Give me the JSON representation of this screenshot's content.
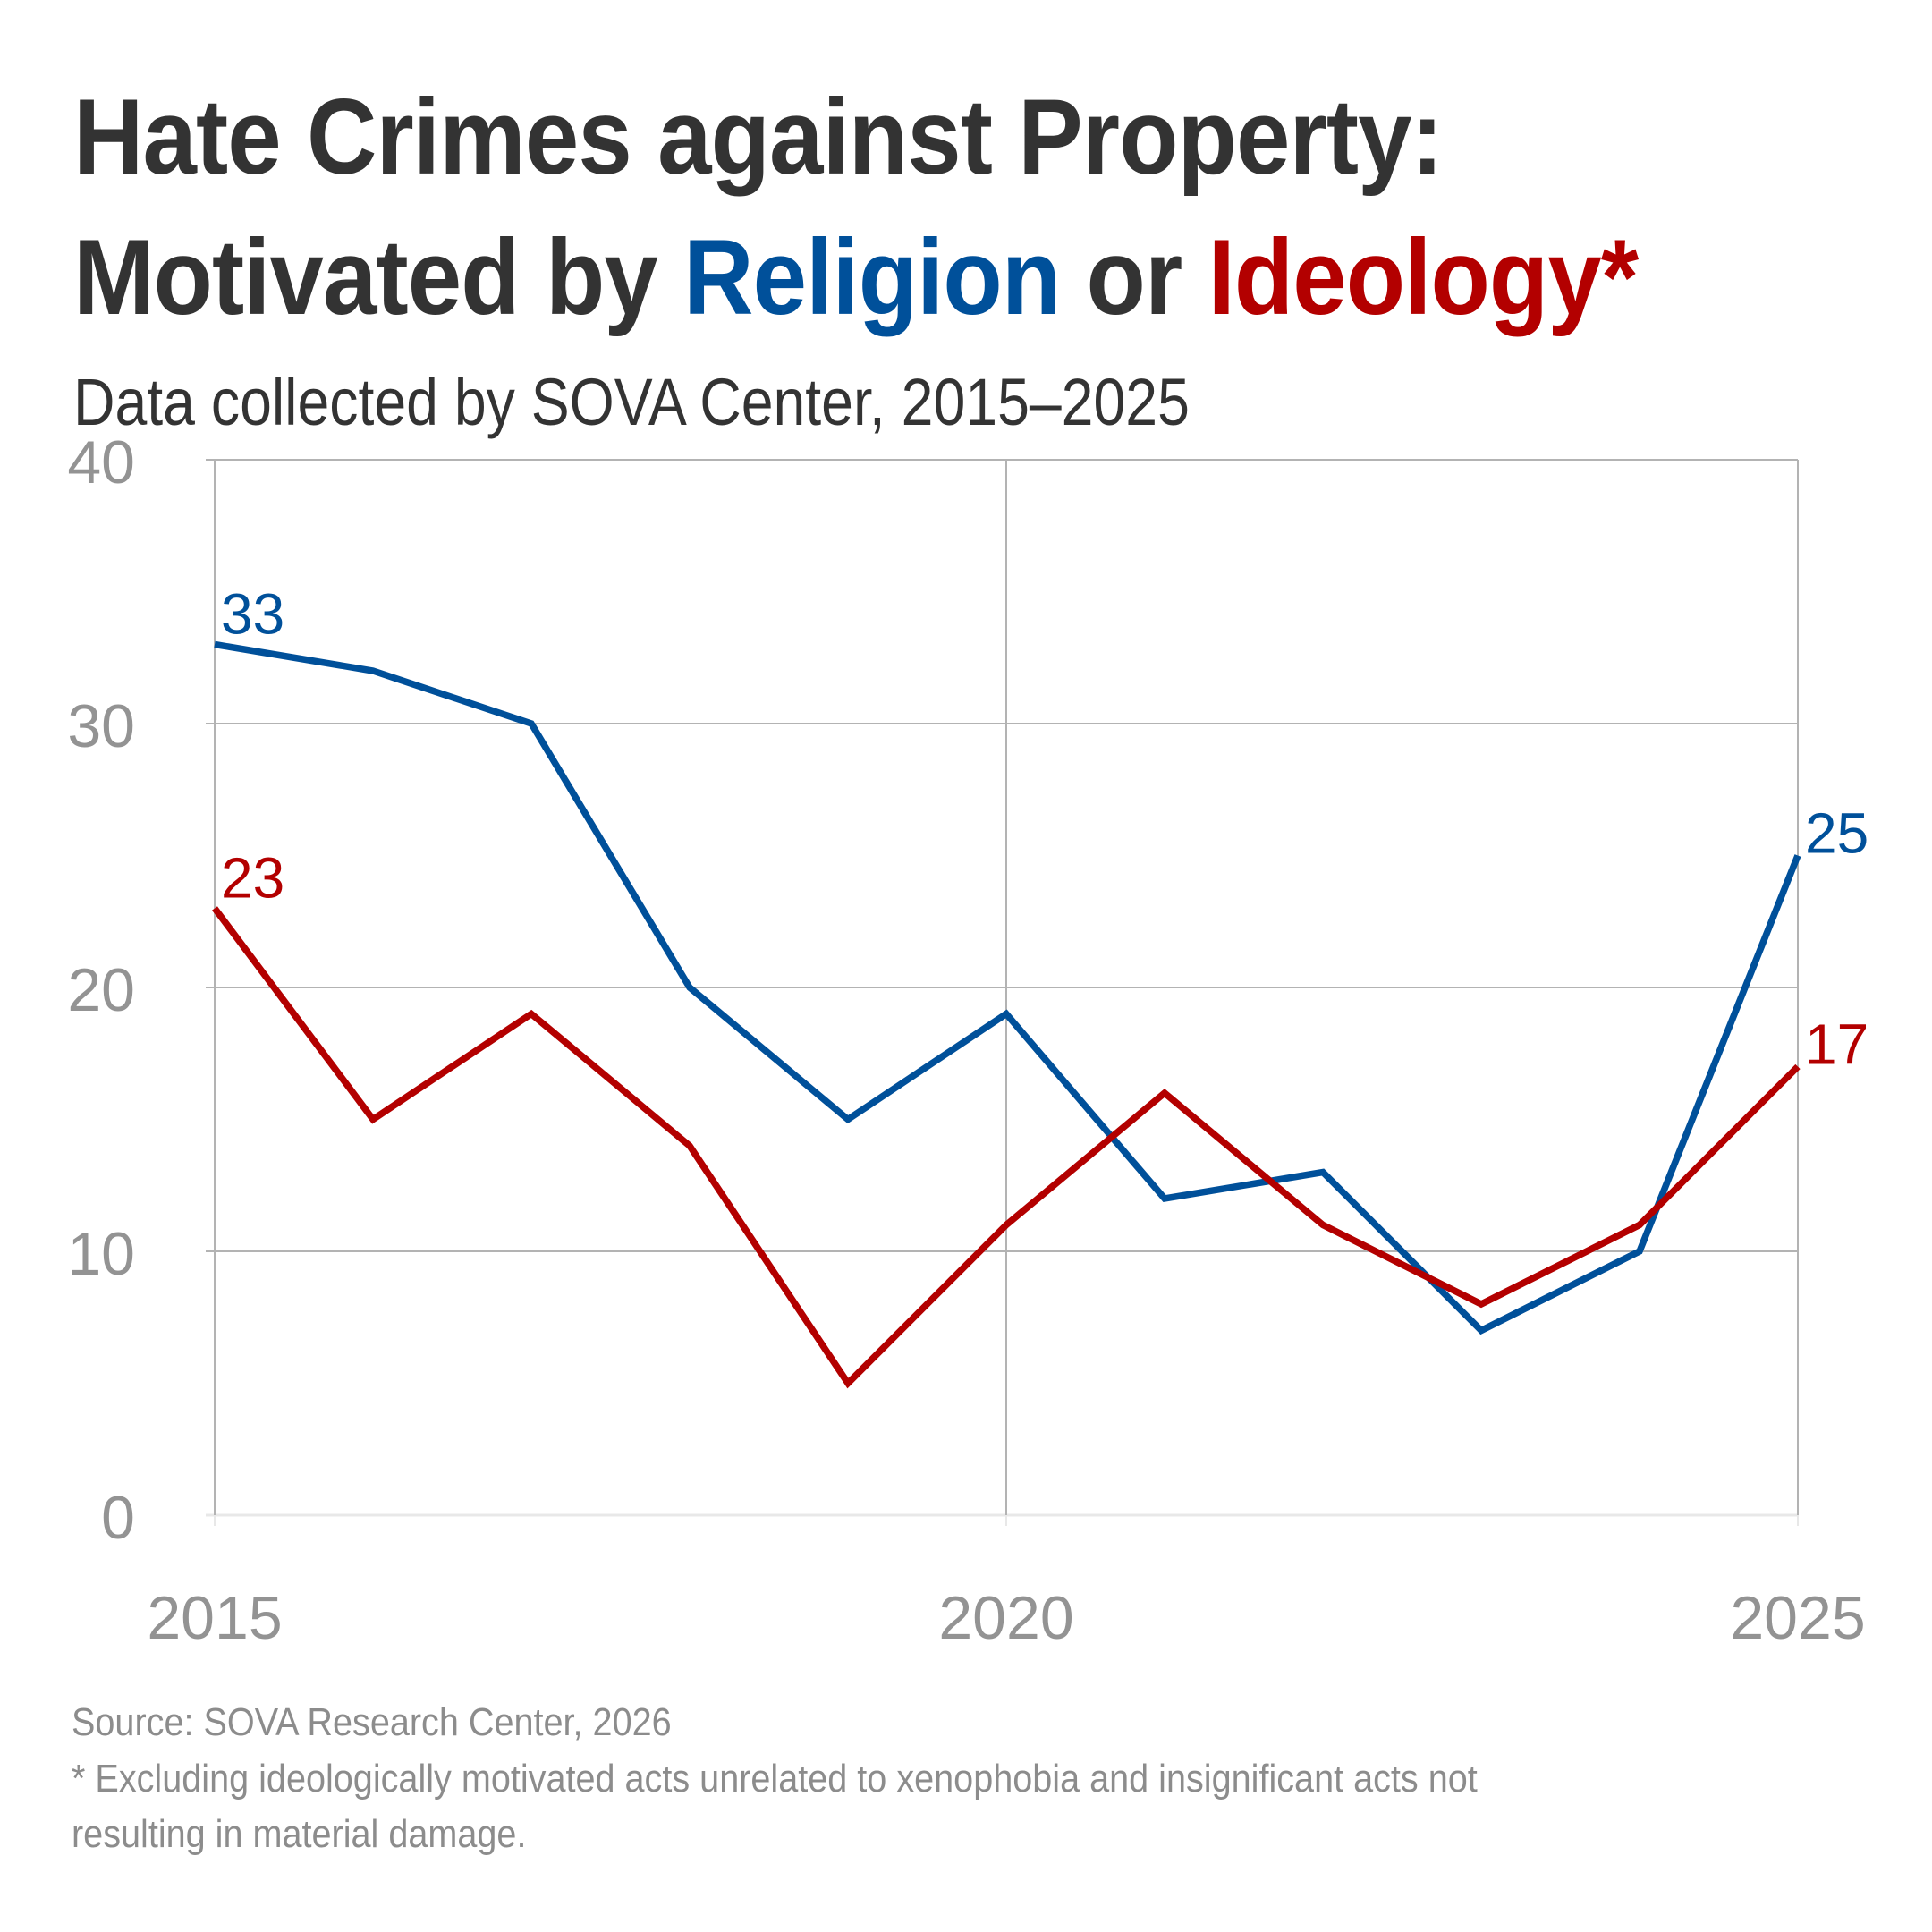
{
  "title": {
    "line1": "Hate Crimes against Property:",
    "line2_prefix": "Motivated by ",
    "line2_religion": "Religion",
    "line2_middle": " or ",
    "line2_ideology": "Ideology*"
  },
  "subtitle": "Data collected by SOVA Center, 2015–2025",
  "footer": {
    "source": "Source: SOVA Research Center, 2026",
    "note_line1": "* Excluding ideologically motivated acts unrelated to xenophobia and insignificant acts not",
    "note_line2": "resulting in material damage."
  },
  "colors": {
    "religion": "#00509a",
    "ideology": "#b30000",
    "grid": "#b3b3b3",
    "baseline": "#e8e8e8",
    "tick_text": "#939393",
    "title_text": "#333333"
  },
  "chart_data": {
    "type": "line",
    "title": "Hate Crimes against Property: Motivated by Religion or Ideology*",
    "subtitle": "Data collected by SOVA Center, 2015–2025",
    "xlabel": "",
    "ylabel": "",
    "x": [
      2015,
      2016,
      2017,
      2018,
      2019,
      2020,
      2021,
      2022,
      2023,
      2024,
      2025
    ],
    "xlim": [
      2015,
      2025
    ],
    "ylim": [
      0,
      40
    ],
    "x_ticks": [
      2015,
      2020,
      2025
    ],
    "x_tick_labels": [
      "2015",
      "2020",
      "2025"
    ],
    "y_ticks": [
      0,
      10,
      20,
      30,
      40
    ],
    "y_tick_labels": [
      "0",
      "10",
      "20",
      "30",
      "40"
    ],
    "grid": true,
    "legend": "none (series identified by colored words in title)",
    "series": [
      {
        "name": "Religion",
        "color": "#00509a",
        "values": [
          33,
          32,
          30,
          20,
          15,
          19,
          12,
          13,
          7,
          10,
          25
        ],
        "labeled_points": [
          {
            "x": 2015,
            "value": 33,
            "label": "33"
          },
          {
            "x": 2025,
            "value": 25,
            "label": "25"
          }
        ]
      },
      {
        "name": "Ideology",
        "color": "#b30000",
        "values": [
          23,
          15,
          19,
          14,
          5,
          11,
          16,
          11,
          8,
          11,
          17
        ],
        "labeled_points": [
          {
            "x": 2015,
            "value": 23,
            "label": "23"
          },
          {
            "x": 2025,
            "value": 17,
            "label": "17"
          }
        ]
      }
    ],
    "source": "Source: SOVA Research Center, 2026",
    "note": "* Excluding ideologically motivated acts unrelated to xenophobia and insignificant acts not resulting in material damage."
  }
}
